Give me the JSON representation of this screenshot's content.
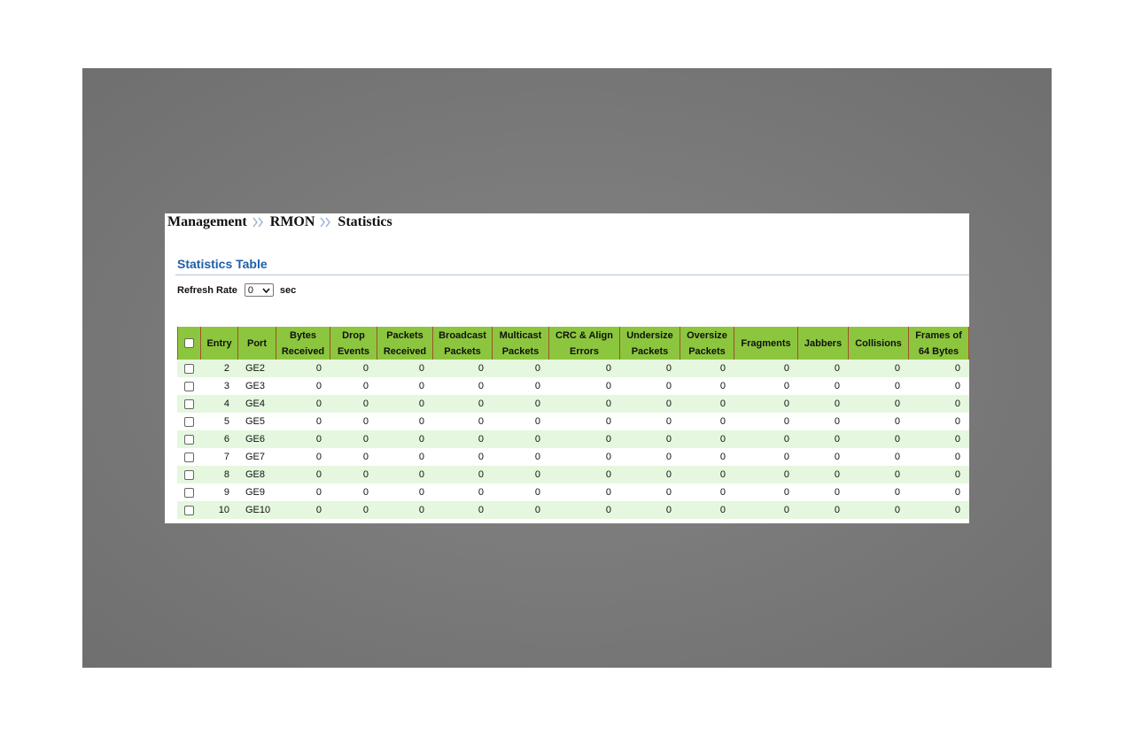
{
  "breadcrumb": [
    "Management",
    "RMON",
    "Statistics"
  ],
  "section_title": "Statistics Table",
  "refresh_rate": {
    "label": "Refresh Rate",
    "value": "0",
    "unit": "sec"
  },
  "table": {
    "columns": [
      [
        "Entry"
      ],
      [
        "Port"
      ],
      [
        "Bytes",
        "Received"
      ],
      [
        "Drop",
        "Events"
      ],
      [
        "Packets",
        "Received"
      ],
      [
        "Broadcast",
        "Packets"
      ],
      [
        "Multicast",
        "Packets"
      ],
      [
        "CRC & Align",
        "Errors"
      ],
      [
        "Undersize",
        "Packets"
      ],
      [
        "Oversize",
        "Packets"
      ],
      [
        "Fragments"
      ],
      [
        "Jabbers"
      ],
      [
        "Collisions"
      ],
      [
        "Frames of",
        "64 Bytes"
      ]
    ],
    "rows": [
      [
        2,
        "GE2",
        0,
        0,
        0,
        0,
        0,
        0,
        0,
        0,
        0,
        0,
        0,
        0
      ],
      [
        3,
        "GE3",
        0,
        0,
        0,
        0,
        0,
        0,
        0,
        0,
        0,
        0,
        0,
        0
      ],
      [
        4,
        "GE4",
        0,
        0,
        0,
        0,
        0,
        0,
        0,
        0,
        0,
        0,
        0,
        0
      ],
      [
        5,
        "GE5",
        0,
        0,
        0,
        0,
        0,
        0,
        0,
        0,
        0,
        0,
        0,
        0
      ],
      [
        6,
        "GE6",
        0,
        0,
        0,
        0,
        0,
        0,
        0,
        0,
        0,
        0,
        0,
        0
      ],
      [
        7,
        "GE7",
        0,
        0,
        0,
        0,
        0,
        0,
        0,
        0,
        0,
        0,
        0,
        0
      ],
      [
        8,
        "GE8",
        0,
        0,
        0,
        0,
        0,
        0,
        0,
        0,
        0,
        0,
        0,
        0
      ],
      [
        9,
        "GE9",
        0,
        0,
        0,
        0,
        0,
        0,
        0,
        0,
        0,
        0,
        0,
        0
      ],
      [
        10,
        "GE10",
        0,
        0,
        0,
        0,
        0,
        0,
        0,
        0,
        0,
        0,
        0,
        0
      ]
    ]
  }
}
